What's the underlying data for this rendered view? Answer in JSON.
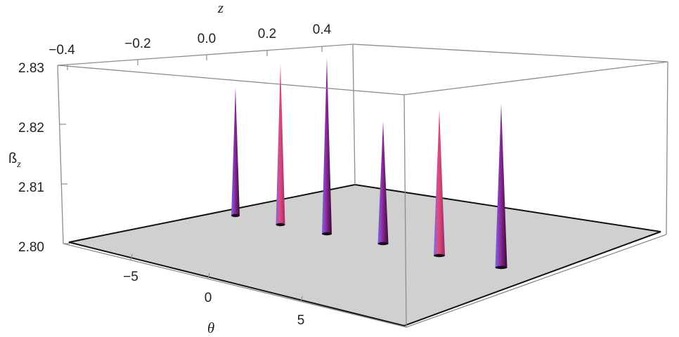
{
  "chart_data": {
    "type": "surface3d",
    "z_axis": {
      "label": "z",
      "ticks": [
        "−0.4",
        "−0.2",
        "0.0",
        "0.2",
        "0.4"
      ],
      "range": [
        -0.45,
        0.45
      ]
    },
    "theta_axis": {
      "label": "θ",
      "ticks": [
        "−5",
        "0",
        "5"
      ],
      "range": [
        -9.5,
        9.5
      ]
    },
    "beta_axis": {
      "label": "ß",
      "label_subscript": "z",
      "ticks": [
        "2.80",
        "2.81",
        "2.82",
        "2.83"
      ],
      "range": [
        2.8,
        2.83
      ]
    },
    "baseline": 2.8,
    "spikes": [
      {
        "peak": 2.8215
      },
      {
        "peak": 2.827
      },
      {
        "peak": 2.8295
      },
      {
        "peak": 2.8205
      },
      {
        "peak": 2.8245
      },
      {
        "peak": 2.8275
      }
    ],
    "colors": {
      "floor": "#d0d0d0",
      "box": "#8c8c8c",
      "spike_dark": "#4a0a3a",
      "spike_mid": "#8a2a9a",
      "spike_light": "#e04a7a",
      "spike_blue": "#7a6ae8"
    }
  }
}
